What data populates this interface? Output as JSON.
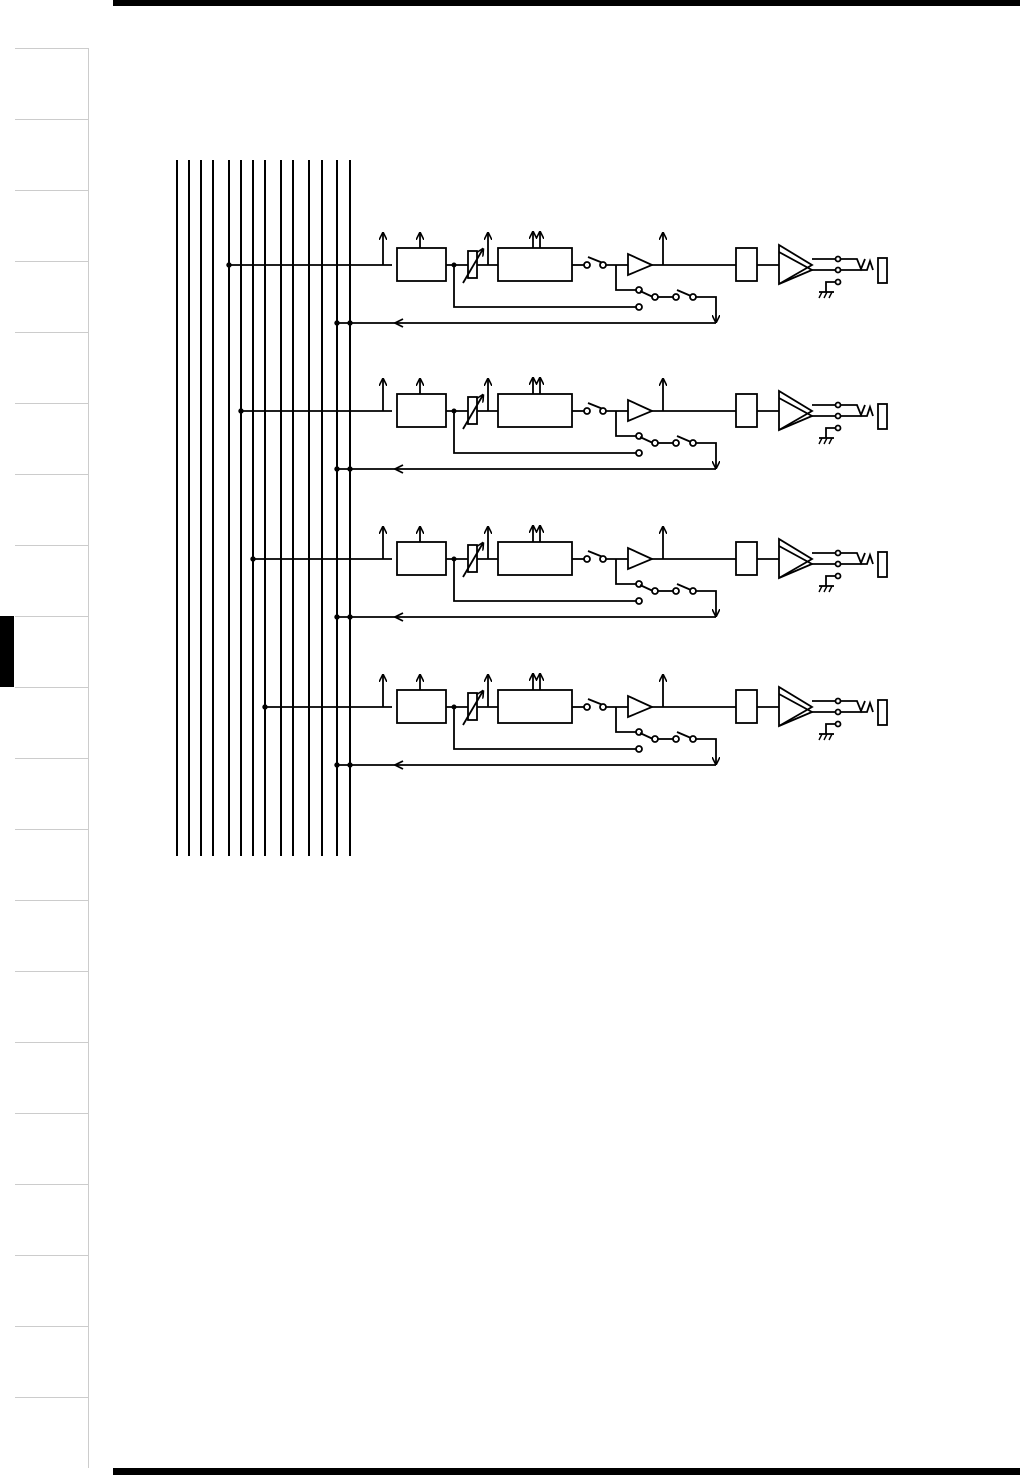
{
  "page": {
    "ink_color": "#000000",
    "tab_border_color": "#cccccc",
    "active_tab_index": 8,
    "tab_count": 20
  },
  "diagram": {
    "type": "signal-flow block diagram",
    "bus_line_count": 14,
    "channels": [
      {
        "tap_bus": 4,
        "return_buses": [
          12,
          13
        ]
      },
      {
        "tap_bus": 5,
        "return_buses": [
          12,
          13
        ]
      },
      {
        "tap_bus": 6,
        "return_buses": [
          12,
          13
        ]
      },
      {
        "tap_bus": 7,
        "return_buses": [
          12,
          13
        ]
      }
    ]
  }
}
